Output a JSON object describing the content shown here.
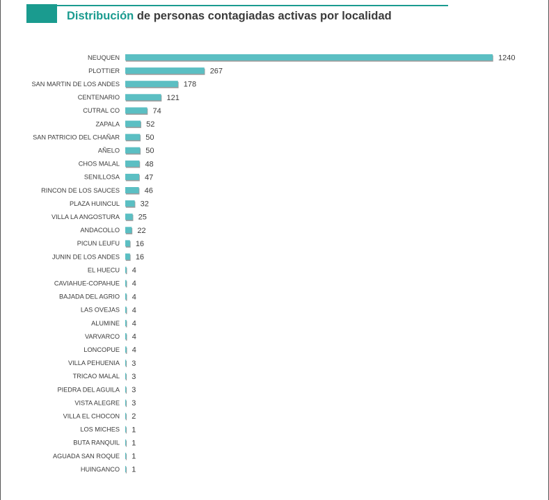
{
  "title": {
    "highlight": "Distribución",
    "rest": " de personas contagiadas activas por localidad"
  },
  "colors": {
    "accent": "#1a9b8f",
    "bar": "#5bbfc3",
    "bar_shadow": "#4a4a4a",
    "text": "#3b3b3b"
  },
  "chart_data": {
    "type": "bar",
    "orientation": "horizontal",
    "title": "Distribución de personas contagiadas activas por localidad",
    "xlabel": "",
    "ylabel": "",
    "grid": false,
    "legend": "none",
    "xlim": [
      0,
      1240
    ],
    "categories": [
      "NEUQUEN",
      "PLOTTIER",
      "SAN MARTIN DE LOS ANDES",
      "CENTENARIO",
      "CUTRAL CO",
      "ZAPALA",
      "SAN PATRICIO DEL CHAÑAR",
      "AÑELO",
      "CHOS MALAL",
      "SENILLOSA",
      "RINCON DE LOS SAUCES",
      "PLAZA HUINCUL",
      "VILLA LA ANGOSTURA",
      "ANDACOLLO",
      "PICUN LEUFU",
      "JUNIN DE LOS ANDES",
      "EL HUECU",
      "CAVIAHUE-COPAHUE",
      "BAJADA DEL AGRIO",
      "LAS OVEJAS",
      "ALUMINE",
      "VARVARCO",
      "LONCOPUE",
      "VILLA PEHUENIA",
      "TRICAO MALAL",
      "PIEDRA DEL AGUILA",
      "VISTA ALEGRE",
      "VILLA EL CHOCON",
      "LOS MICHES",
      "BUTA RANQUIL",
      "AGUADA SAN ROQUE",
      "HUINGANCO"
    ],
    "values": [
      1240,
      267,
      178,
      121,
      74,
      52,
      50,
      50,
      48,
      47,
      46,
      32,
      25,
      22,
      16,
      16,
      4,
      4,
      4,
      4,
      4,
      4,
      4,
      3,
      3,
      3,
      3,
      2,
      1,
      1,
      1,
      1
    ]
  }
}
